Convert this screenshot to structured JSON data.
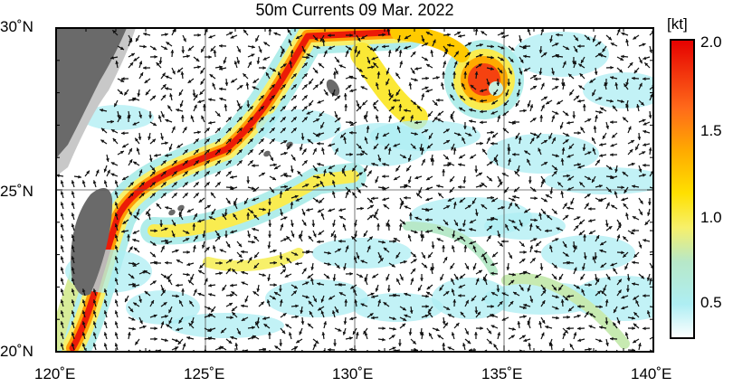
{
  "title": "50m Currents  09 Mar. 2022",
  "map": {
    "lon_range": [
      120,
      140
    ],
    "lat_range": [
      20,
      30
    ],
    "gridlines": true,
    "lat_ticks": [
      {
        "value": 30,
        "label": "30˚N"
      },
      {
        "value": 25,
        "label": "25˚N"
      },
      {
        "value": 20,
        "label": "20˚N"
      }
    ],
    "lon_ticks": [
      {
        "value": 120,
        "label": "120˚E"
      },
      {
        "value": 125,
        "label": "125˚E"
      },
      {
        "value": 130,
        "label": "130˚E"
      },
      {
        "value": 135,
        "label": "135˚E"
      },
      {
        "value": 140,
        "label": "140˚E"
      }
    ],
    "land_color": "#6a6a6a",
    "shelf_color": "#c8c8c8",
    "arrow_color": "#111111"
  },
  "colorbar": {
    "unit": "[kt]",
    "range": [
      0.25,
      2.0
    ],
    "ticks": [
      {
        "value": 2.0,
        "label": "2.0"
      },
      {
        "value": 1.5,
        "label": "1.5"
      },
      {
        "value": 1.0,
        "label": "1.0"
      },
      {
        "value": 0.5,
        "label": "0.5"
      }
    ],
    "stops": [
      {
        "value": 0.25,
        "color": "#ffffff"
      },
      {
        "value": 0.45,
        "color": "#aeeef3"
      },
      {
        "value": 0.7,
        "color": "#b7e8c8"
      },
      {
        "value": 0.9,
        "color": "#f7f06a"
      },
      {
        "value": 1.1,
        "color": "#ffe000"
      },
      {
        "value": 1.35,
        "color": "#ffaa00"
      },
      {
        "value": 1.6,
        "color": "#ff6a1a"
      },
      {
        "value": 2.0,
        "color": "#e50000"
      }
    ]
  }
}
